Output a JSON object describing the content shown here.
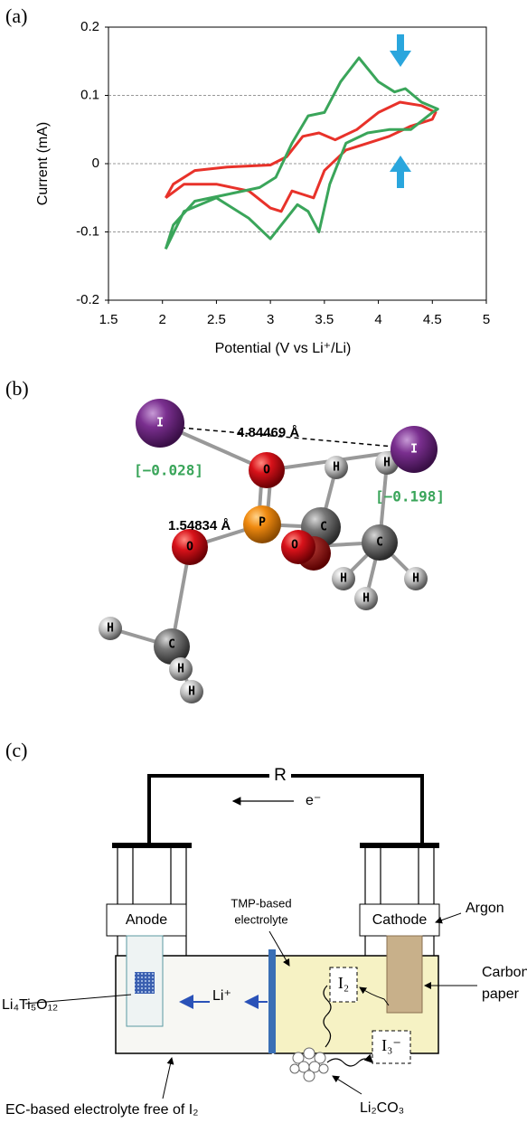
{
  "panel_labels": [
    "(a)",
    "(b)",
    "(c)"
  ],
  "chart_data": {
    "type": "line",
    "y_label": "Current (mA)",
    "x_label": "Potential (V vs Li⁺/Li)",
    "xlim": [
      1.5,
      5
    ],
    "xticks": [
      1.5,
      2,
      2.5,
      3,
      3.5,
      4,
      4.5,
      5
    ],
    "ylim": [
      -0.2,
      0.2
    ],
    "yticks": [
      0.2,
      0.1,
      0,
      -0.1,
      -0.2
    ],
    "grid": true,
    "series": [
      {
        "color": "#e8322a",
        "x": [
          2.03,
          2.1,
          2.3,
          2.6,
          3.0,
          3.15,
          3.3,
          3.45,
          3.6,
          3.8,
          4.0,
          4.2,
          4.4,
          4.53,
          4.5,
          4.3,
          4.1,
          3.9,
          3.7,
          3.5,
          3.4,
          3.3,
          3.2,
          3.1,
          3.0,
          2.8,
          2.5,
          2.2,
          2.03
        ],
        "values": [
          -0.05,
          -0.03,
          -0.01,
          -0.005,
          -0.002,
          0.01,
          0.04,
          0.045,
          0.035,
          0.05,
          0.075,
          0.09,
          0.085,
          0.075,
          0.065,
          0.055,
          0.04,
          0.03,
          0.02,
          -0.01,
          -0.05,
          -0.045,
          -0.04,
          -0.07,
          -0.065,
          -0.04,
          -0.03,
          -0.03,
          -0.05
        ]
      },
      {
        "color": "#3aa55a",
        "x": [
          2.03,
          2.1,
          2.3,
          2.6,
          2.9,
          3.05,
          3.2,
          3.35,
          3.5,
          3.65,
          3.82,
          4.0,
          4.15,
          4.25,
          4.4,
          4.55,
          4.5,
          4.3,
          4.1,
          3.9,
          3.7,
          3.55,
          3.45,
          3.35,
          3.25,
          3.1,
          3.0,
          2.8,
          2.5,
          2.2,
          2.03
        ],
        "values": [
          -0.125,
          -0.09,
          -0.055,
          -0.045,
          -0.035,
          -0.02,
          0.03,
          0.07,
          0.075,
          0.12,
          0.155,
          0.12,
          0.105,
          0.11,
          0.09,
          0.08,
          0.075,
          0.05,
          0.05,
          0.045,
          0.03,
          -0.03,
          -0.1,
          -0.07,
          -0.06,
          -0.09,
          -0.11,
          -0.08,
          -0.05,
          -0.07,
          -0.125
        ]
      }
    ]
  },
  "molecule": {
    "atoms": [
      "I",
      "I",
      "O",
      "P",
      "C",
      "O",
      "C",
      "O",
      "C",
      "H",
      "H",
      "H",
      "H",
      "H",
      "H",
      "H",
      "H"
    ],
    "distances": [
      "4.84469 Å",
      "1.54834 Å"
    ],
    "charges": [
      "[−0.028]",
      "[−0.198]"
    ]
  },
  "cell": {
    "resistor": "R",
    "electron": "e⁻",
    "anode": "Anode",
    "cathode": "Cathode",
    "argon": "Argon",
    "carbon_paper": [
      "Carbon",
      "paper"
    ],
    "tmp_electrolyte": [
      "TMP-based",
      "electrolyte"
    ],
    "li_ion": "Li⁺",
    "anode_material": "Li₄Ti₅O₁₂",
    "iodine": "I₂",
    "triiodide": "I₃⁻",
    "li2co3": "Li₂CO₃",
    "ec_electrolyte": "EC-based electrolyte free of I₂"
  }
}
